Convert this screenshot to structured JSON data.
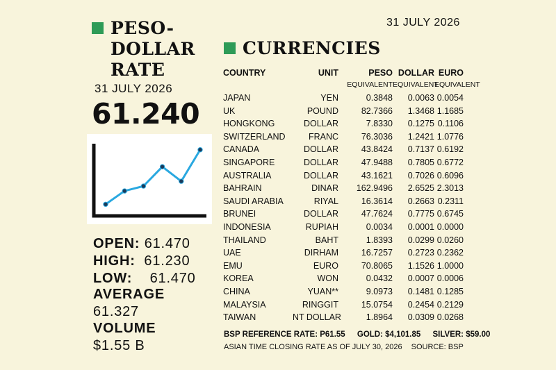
{
  "header": {
    "date": "31 JULY 2026"
  },
  "peso": {
    "title_line1": "PESO-",
    "title_line2": "DOLLAR",
    "title_line3": "RATE",
    "date": "31 JULY 2026",
    "rate": "61.240",
    "stats": {
      "open_label": "OPEN:",
      "open_value": "61.470",
      "high_label": "HIGH:",
      "high_value": "61.230",
      "low_label": "LOW:",
      "low_value": "61.470",
      "average_label": "AVERAGE",
      "average_value": "61.327",
      "volume_label": "VOLUME",
      "volume_value": "$1.55 B"
    },
    "chart_data": {
      "type": "line",
      "x": [
        1,
        2,
        3,
        4,
        5,
        6
      ],
      "values": [
        10,
        32,
        40,
        72,
        48,
        100
      ],
      "xlabel": "",
      "ylabel": "",
      "ylim": [
        0,
        110
      ],
      "grid": false,
      "line_color": "#29a8e0",
      "axis_color": "#111111"
    }
  },
  "currencies": {
    "title": "CURRENCIES",
    "headers": {
      "country": "COUNTRY",
      "unit": "UNIT",
      "peso": "PESO",
      "dollar": "DOLLAR",
      "euro": "EURO",
      "peso_sub": "EQUIVALENT",
      "dollar_sub": "EQUIVALENT",
      "euro_sub": "EQUIVALENT"
    },
    "rows": [
      {
        "country": "JAPAN",
        "unit": "YEN",
        "peso": "0.3848",
        "dollar": "0.0063",
        "euro": "0.0054"
      },
      {
        "country": "UK",
        "unit": "POUND",
        "peso": "82.7366",
        "dollar": "1.3468",
        "euro": "1.1685"
      },
      {
        "country": "HONGKONG",
        "unit": "DOLLAR",
        "peso": "7.8330",
        "dollar": "0.1275",
        "euro": "0.1106"
      },
      {
        "country": "SWITZERLAND",
        "unit": "FRANC",
        "peso": "76.3036",
        "dollar": "1.2421",
        "euro": "1.0776"
      },
      {
        "country": "CANADA",
        "unit": "DOLLAR",
        "peso": "43.8424",
        "dollar": "0.7137",
        "euro": "0.6192"
      },
      {
        "country": "SINGAPORE",
        "unit": "DOLLAR",
        "peso": "47.9488",
        "dollar": "0.7805",
        "euro": "0.6772"
      },
      {
        "country": "AUSTRALIA",
        "unit": "DOLLAR",
        "peso": "43.1621",
        "dollar": "0.7026",
        "euro": "0.6096"
      },
      {
        "country": "BAHRAIN",
        "unit": "DINAR",
        "peso": "162.9496",
        "dollar": "2.6525",
        "euro": "2.3013"
      },
      {
        "country": "SAUDI ARABIA",
        "unit": "RIYAL",
        "peso": "16.3614",
        "dollar": "0.2663",
        "euro": "0.2311"
      },
      {
        "country": "BRUNEI",
        "unit": "DOLLAR",
        "peso": "47.7624",
        "dollar": "0.7775",
        "euro": "0.6745"
      },
      {
        "country": "INDONESIA",
        "unit": "RUPIAH",
        "peso": "0.0034",
        "dollar": "0.0001",
        "euro": "0.0000"
      },
      {
        "country": "THAILAND",
        "unit": "BAHT",
        "peso": "1.8393",
        "dollar": "0.0299",
        "euro": "0.0260"
      },
      {
        "country": "UAE",
        "unit": "DIRHAM",
        "peso": "16.7257",
        "dollar": "0.2723",
        "euro": "0.2362"
      },
      {
        "country": "EMU",
        "unit": "EURO",
        "peso": "70.8065",
        "dollar": "1.1526",
        "euro": "1.0000"
      },
      {
        "country": "KOREA",
        "unit": "WON",
        "peso": "0.0432",
        "dollar": "0.0007",
        "euro": "0.0006"
      },
      {
        "country": "CHINA",
        "unit": "YUAN**",
        "peso": "9.0973",
        "dollar": "0.1481",
        "euro": "0.1285"
      },
      {
        "country": "MALAYSIA",
        "unit": "RINGGIT",
        "peso": "15.0754",
        "dollar": "0.2454",
        "euro": "0.2129"
      },
      {
        "country": "TAIWAN",
        "unit": "NT DOLLAR",
        "peso": "1.8964",
        "dollar": "0.0309",
        "euro": "0.0268"
      }
    ],
    "footer": {
      "bsp_rate": "BSP REFERENCE RATE: P61.55",
      "gold": "GOLD: $4,101.85",
      "silver": "SILVER: $59.00",
      "closing_note": "ASIAN TIME CLOSING RATE AS OF JULY 30, 2026",
      "source": "SOURCE: BSP"
    }
  }
}
